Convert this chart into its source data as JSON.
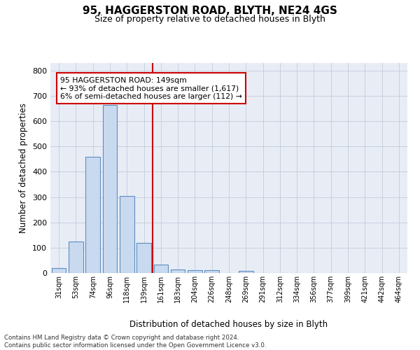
{
  "title1": "95, HAGGERSTON ROAD, BLYTH, NE24 4GS",
  "title2": "Size of property relative to detached houses in Blyth",
  "xlabel": "Distribution of detached houses by size in Blyth",
  "ylabel": "Number of detached properties",
  "bar_labels": [
    "31sqm",
    "53sqm",
    "74sqm",
    "96sqm",
    "118sqm",
    "139sqm",
    "161sqm",
    "183sqm",
    "204sqm",
    "226sqm",
    "248sqm",
    "269sqm",
    "291sqm",
    "312sqm",
    "334sqm",
    "356sqm",
    "377sqm",
    "399sqm",
    "421sqm",
    "442sqm",
    "464sqm"
  ],
  "bar_heights": [
    18,
    125,
    460,
    665,
    303,
    118,
    33,
    15,
    12,
    10,
    0,
    8,
    0,
    0,
    0,
    0,
    0,
    0,
    0,
    0,
    0
  ],
  "bar_color": "#c9d9ef",
  "bar_edge_color": "#5b8fc4",
  "vline_x": 5.5,
  "vline_color": "#cc0000",
  "annotation_text": "95 HAGGERSTON ROAD: 149sqm\n← 93% of detached houses are smaller (1,617)\n6% of semi-detached houses are larger (112) →",
  "annotation_box_color": "#cc0000",
  "ylim": [
    0,
    830
  ],
  "yticks": [
    0,
    100,
    200,
    300,
    400,
    500,
    600,
    700,
    800
  ],
  "grid_color": "#c8d0e0",
  "bg_color": "#e8edf5",
  "footnote": "Contains HM Land Registry data © Crown copyright and database right 2024.\nContains public sector information licensed under the Open Government Licence v3.0."
}
